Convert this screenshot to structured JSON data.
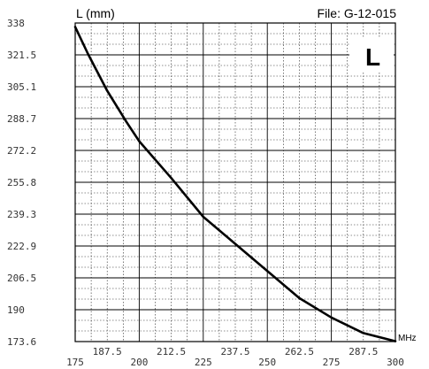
{
  "chart_data": {
    "type": "line",
    "title": "",
    "ylabel": "L (mm)",
    "xlabel": "MHz",
    "file_label": "File:  G-12-015",
    "corner_letter": "L",
    "xlim": [
      175,
      300
    ],
    "ylim": [
      173.6,
      338
    ],
    "x_ticks_upper": [
      "187.5",
      "212.5",
      "237.5",
      "262.5",
      "287.5"
    ],
    "x_ticks_lower": [
      "175",
      "200",
      "225",
      "250",
      "275",
      "300"
    ],
    "y_ticks": [
      "338",
      "321.5",
      "305.1",
      "288.7",
      "272.2",
      "255.8",
      "239.3",
      "222.9",
      "206.5",
      "190",
      "173.6"
    ],
    "grid": true,
    "series": [
      {
        "name": "",
        "x": [
          175,
          180,
          187.5,
          195,
          200,
          212.5,
          225,
          237.5,
          250,
          262.5,
          275,
          287.5,
          300
        ],
        "y": [
          336,
          322,
          303,
          287,
          277,
          258,
          238,
          224,
          210,
          196,
          186,
          178,
          173.8
        ]
      }
    ]
  }
}
